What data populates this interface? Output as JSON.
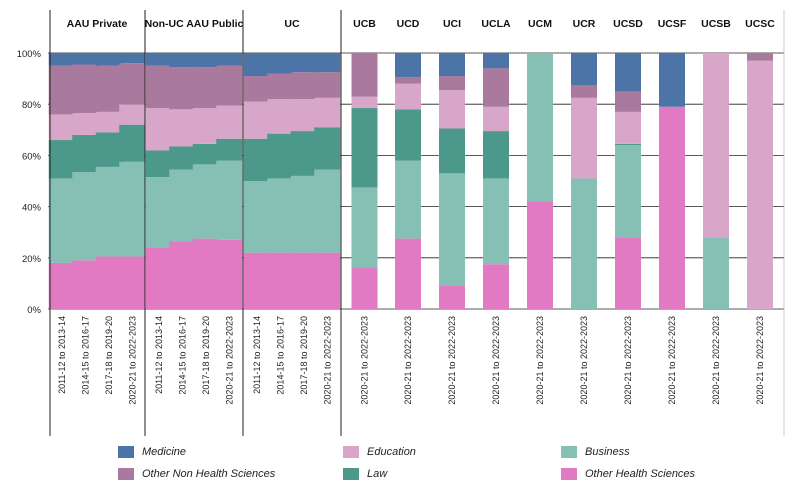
{
  "chart_data": {
    "type": "bar",
    "stacked": true,
    "ylim": [
      0,
      100
    ],
    "y_ticks": [
      "0%",
      "20%",
      "40%",
      "60%",
      "80%",
      "100%"
    ],
    "series": [
      {
        "name": "Other Health Sciences",
        "color": "#e27ac3"
      },
      {
        "name": "Business",
        "color": "#86bfb4"
      },
      {
        "name": "Law",
        "color": "#4c988a"
      },
      {
        "name": "Education",
        "color": "#d8a6c8"
      },
      {
        "name": "Other Non Health Sciences",
        "color": "#a97a9e"
      },
      {
        "name": "Medicine",
        "color": "#4d74a6"
      }
    ],
    "legend_order": [
      "Medicine",
      "Education",
      "Business",
      "Other Non Health Sciences",
      "Law",
      "Other Health Sciences"
    ],
    "groups": [
      {
        "label": "AAU Private",
        "bars": [
          {
            "category": "2011-12 to 2013-14",
            "values": [
              18,
              33,
              15,
              10,
              19,
              5
            ]
          },
          {
            "category": "2014-15 to 2016-17",
            "values": [
              19,
              34.5,
              14.5,
              8.5,
              19,
              4.5
            ]
          },
          {
            "category": "2017-18 to 2019-20",
            "values": [
              20.5,
              35,
              13.5,
              8,
              18,
              5
            ]
          },
          {
            "category": "2020-21 to 2022-2023",
            "values": [
              20.5,
              37,
              14.5,
              8,
              16,
              4
            ]
          }
        ]
      },
      {
        "label": "Non-UC AAU Public",
        "bars": [
          {
            "category": "2011-12 to 2013-14",
            "values": [
              24,
              27.5,
              10.5,
              16.5,
              16.5,
              5
            ]
          },
          {
            "category": "2014-15 to 2016-17",
            "values": [
              26.5,
              28,
              9,
              14.5,
              16.5,
              5.5
            ]
          },
          {
            "category": "2017-18 to 2019-20",
            "values": [
              27.5,
              29,
              8,
              14,
              16,
              5.5
            ]
          },
          {
            "category": "2020-21 to 2022-2023",
            "values": [
              27,
              31,
              8.5,
              13,
              15.5,
              5
            ]
          }
        ]
      },
      {
        "label": "UC",
        "bars": [
          {
            "category": "2011-12 to 2013-14",
            "values": [
              22,
              28,
              16.5,
              14.5,
              10,
              9
            ]
          },
          {
            "category": "2014-15 to 2016-17",
            "values": [
              22,
              29,
              17.5,
              13.5,
              10,
              8
            ]
          },
          {
            "category": "2017-18 to 2019-20",
            "values": [
              22,
              30,
              17.5,
              12.5,
              10.5,
              7.5
            ]
          },
          {
            "category": "2020-21 to 2022-2023",
            "values": [
              22,
              32.5,
              16.5,
              11.5,
              10,
              7.5
            ]
          }
        ]
      },
      {
        "label": "UCB",
        "bars": [
          {
            "category": "2020-21 to 2022-2023",
            "values": [
              16,
              31.5,
              31,
              4.5,
              17,
              0
            ]
          }
        ]
      },
      {
        "label": "UCD",
        "bars": [
          {
            "category": "2020-21 to 2022-2023",
            "values": [
              27.5,
              30.5,
              20,
              10,
              2.5,
              9.5
            ]
          }
        ]
      },
      {
        "label": "UCI",
        "bars": [
          {
            "category": "2020-21 to 2022-2023",
            "values": [
              9,
              44,
              17.5,
              15,
              5.5,
              9
            ]
          }
        ]
      },
      {
        "label": "UCLA",
        "bars": [
          {
            "category": "2020-21 to 2022-2023",
            "values": [
              17.5,
              33.5,
              18.5,
              9.5,
              15,
              6
            ]
          }
        ]
      },
      {
        "label": "UCM",
        "bars": [
          {
            "category": "2020-21 to 2022-2023",
            "values": [
              42,
              58,
              0,
              0,
              0,
              0
            ]
          }
        ]
      },
      {
        "label": "UCR",
        "bars": [
          {
            "category": "2020-21 to 2022-2023",
            "values": [
              0,
              51,
              0,
              31.5,
              5,
              12.5
            ]
          }
        ]
      },
      {
        "label": "UCSD",
        "bars": [
          {
            "category": "2020-21 to 2022-2023",
            "values": [
              28,
              36,
              0.5,
              12.5,
              8,
              15
            ]
          }
        ]
      },
      {
        "label": "UCSF",
        "bars": [
          {
            "category": "2020-21 to 2022-2023",
            "values": [
              79,
              0,
              0,
              0,
              0,
              21
            ]
          }
        ]
      },
      {
        "label": "UCSB",
        "bars": [
          {
            "category": "2020-21 to 2022-2023",
            "values": [
              0,
              28,
              0,
              72,
              0,
              0
            ]
          }
        ]
      },
      {
        "label": "UCSC",
        "bars": [
          {
            "category": "2020-21 to 2022-2023",
            "values": [
              0,
              0,
              0,
              97,
              3,
              0
            ]
          }
        ]
      }
    ]
  }
}
